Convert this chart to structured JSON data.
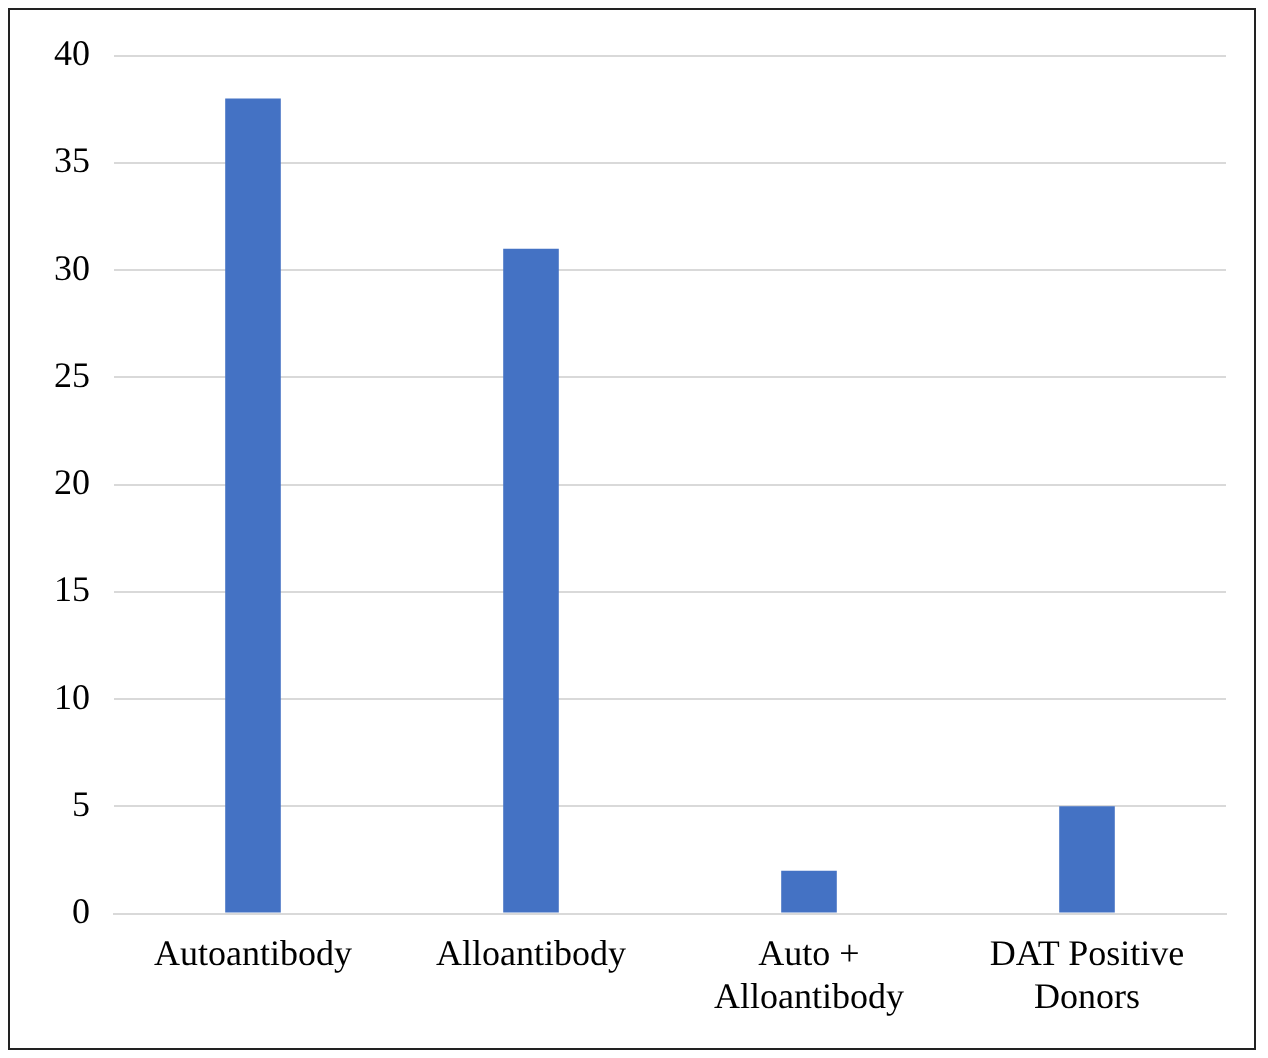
{
  "chart_data": {
    "type": "bar",
    "categories": [
      "Autoantibody",
      "Alloantibody",
      "Auto + Alloantibody",
      "DAT Positive Donors"
    ],
    "values": [
      38,
      31,
      2,
      5
    ],
    "color": "#4472c4",
    "ylim": [
      0,
      40
    ],
    "yticks": [
      0,
      5,
      10,
      15,
      20,
      25,
      30,
      35,
      40
    ],
    "grid": "y"
  }
}
